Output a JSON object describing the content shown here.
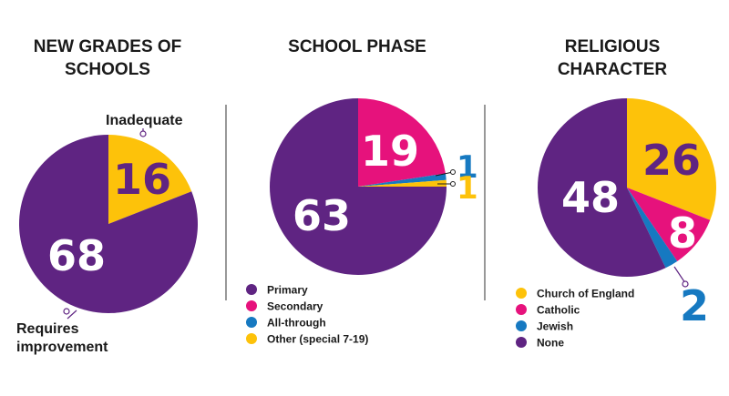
{
  "colors": {
    "purple": "#5f2482",
    "pink": "#e6127c",
    "blue": "#1679c1",
    "yellow": "#fdc20a",
    "white": "#ffffff",
    "dark": "#1a1a1a",
    "divider": "#555555"
  },
  "chart_data": [
    {
      "type": "pie",
      "title_lines": [
        "NEW GRADES OF",
        "SCHOOLS"
      ],
      "slices": [
        {
          "label": "Inadequate",
          "value": 16,
          "display": "16",
          "color": "#fdc20a"
        },
        {
          "label": "Requires improvement",
          "value": 68,
          "display": "68",
          "color": "#5f2482"
        }
      ],
      "annotations": {
        "inadequate": "Inadequate",
        "requires_line1": "Requires",
        "requires_line2": "improvement"
      },
      "legend": []
    },
    {
      "type": "pie",
      "title_lines": [
        "SCHOOL PHASE"
      ],
      "slices": [
        {
          "label": "Secondary",
          "value": 19,
          "display": "19",
          "color": "#e6127c"
        },
        {
          "label": "All-through",
          "value": 1,
          "display": "1",
          "color": "#1679c1"
        },
        {
          "label": "Other (special 7-19)",
          "value": 1,
          "display": "1",
          "color": "#fdc20a"
        },
        {
          "label": "Primary",
          "value": 63,
          "display": "63",
          "color": "#5f2482"
        }
      ],
      "legend": [
        {
          "label": "Primary",
          "color": "#5f2482"
        },
        {
          "label": "Secondary",
          "color": "#e6127c"
        },
        {
          "label": "All-through",
          "color": "#1679c1"
        },
        {
          "label": "Other (special 7-19)",
          "color": "#fdc20a"
        }
      ]
    },
    {
      "type": "pie",
      "title_lines": [
        "RELIGIOUS",
        "CHARACTER"
      ],
      "slices": [
        {
          "label": "Church of England",
          "value": 26,
          "display": "26",
          "color": "#fdc20a"
        },
        {
          "label": "Catholic",
          "value": 8,
          "display": "8",
          "color": "#e6127c"
        },
        {
          "label": "Jewish",
          "value": 2,
          "display": "2",
          "color": "#1679c1"
        },
        {
          "label": "None",
          "value": 48,
          "display": "48",
          "color": "#5f2482"
        }
      ],
      "legend": [
        {
          "label": "Church of England",
          "color": "#fdc20a"
        },
        {
          "label": "Catholic",
          "color": "#e6127c"
        },
        {
          "label": "Jewish",
          "color": "#1679c1"
        },
        {
          "label": "None",
          "color": "#5f2482"
        }
      ]
    }
  ]
}
